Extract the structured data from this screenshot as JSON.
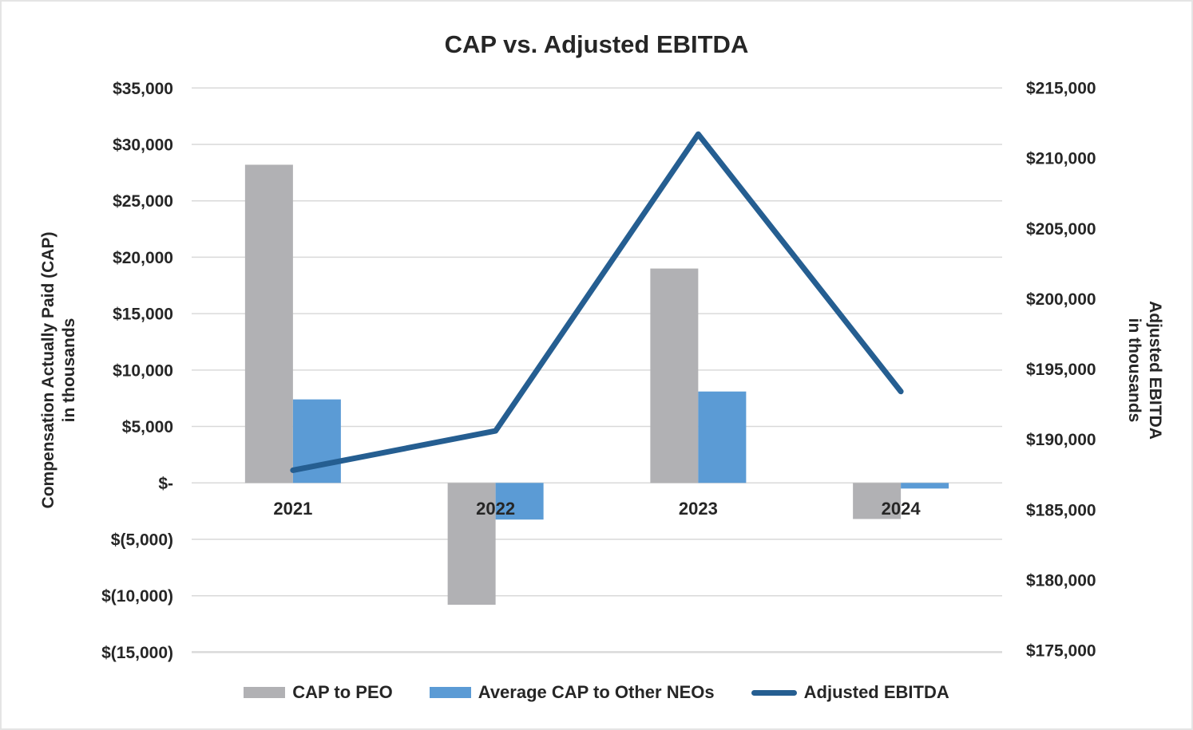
{
  "frame": {
    "background": "#ffffff",
    "border_color": "#e4e4e4"
  },
  "chart_data": {
    "type": "combo-bar-line",
    "title": "CAP vs. Adjusted EBITDA",
    "categories": [
      "2021",
      "2022",
      "2023",
      "2024"
    ],
    "series": [
      {
        "name": "CAP to PEO",
        "type": "bar",
        "axis": "left",
        "color": "#b1b1b4",
        "values": [
          28200,
          -10800,
          19000,
          -3200
        ]
      },
      {
        "name": "Average CAP to Other NEOs",
        "type": "bar",
        "axis": "left",
        "color": "#5b9bd5",
        "values": [
          7400,
          -3250,
          8100,
          -500
        ]
      },
      {
        "name": "Adjusted EBITDA",
        "type": "line",
        "axis": "right",
        "color": "#255e91",
        "values": [
          187800,
          190600,
          211700,
          193400
        ]
      }
    ],
    "left_axis": {
      "title_line1": "Compensation Actually Paid (CAP)",
      "title_line2": "in thousands",
      "max": 35000,
      "min": -15000,
      "ticks": [
        {
          "label": "$35,000",
          "value": 35000
        },
        {
          "label": "$30,000",
          "value": 30000
        },
        {
          "label": "$25,000",
          "value": 25000
        },
        {
          "label": "$20,000",
          "value": 20000
        },
        {
          "label": "$15,000",
          "value": 15000
        },
        {
          "label": "$10,000",
          "value": 10000
        },
        {
          "label": "$5,000",
          "value": 5000
        },
        {
          "label": "$-",
          "value": 0
        },
        {
          "label": "$(5,000)",
          "value": -5000
        },
        {
          "label": "$(10,000)",
          "value": -10000
        },
        {
          "label": "$(15,000)",
          "value": -15000
        }
      ]
    },
    "right_axis": {
      "title_line1": "Adjusted EBITDA",
      "title_line2": "in thousands",
      "max": 215000,
      "min": 175000,
      "ticks": [
        {
          "label": "$215,000",
          "value": 215000
        },
        {
          "label": "$210,000",
          "value": 210000
        },
        {
          "label": "$205,000",
          "value": 205000
        },
        {
          "label": "$200,000",
          "value": 200000
        },
        {
          "label": "$195,000",
          "value": 195000
        },
        {
          "label": "$190,000",
          "value": 190000
        },
        {
          "label": "$185,000",
          "value": 185000
        },
        {
          "label": "$180,000",
          "value": 180000
        },
        {
          "label": "$175,000",
          "value": 175000
        }
      ]
    },
    "legend": [
      {
        "label": "CAP to PEO",
        "swatch": "bar",
        "color": "#b1b1b4"
      },
      {
        "label": "Average CAP to Other NEOs",
        "swatch": "bar",
        "color": "#5b9bd5"
      },
      {
        "label": "Adjusted EBITDA",
        "swatch": "line",
        "color": "#255e91"
      }
    ],
    "gridline_color": "#d9d9d9",
    "text_color": "#262626",
    "legend_position": "bottom"
  }
}
